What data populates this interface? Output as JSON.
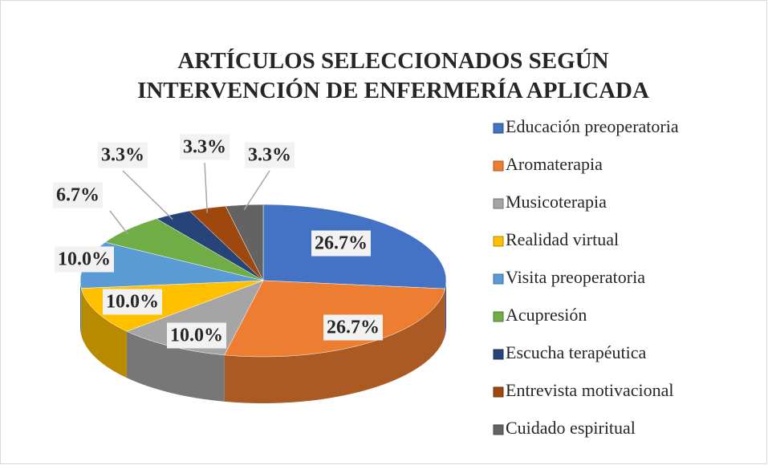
{
  "chart_data": {
    "type": "pie3d",
    "title": "ARTÍCULOS SELECCIONADOS SEGÚN INTERVENCIÓN DE ENFERMERÍA APLICADA",
    "categories": [
      "Educación preoperatoria",
      "Aromaterapia",
      "Musicoterapia",
      "Realidad virtual",
      "Visita preoperatoria",
      "Acupresión",
      "Escucha terapéutica",
      "Entrevista motivacional",
      "Cuidado espiritual"
    ],
    "values": [
      26.7,
      26.7,
      10.0,
      10.0,
      10.0,
      6.7,
      3.3,
      3.3,
      3.3
    ],
    "value_labels": [
      "26.7%",
      "26.7%",
      "10.0%",
      "10.0%",
      "10.0%",
      "6.7%",
      "3.3%",
      "3.3%",
      "3.3%"
    ],
    "colors": [
      "#4472c4",
      "#ed7d31",
      "#a5a5a5",
      "#ffc000",
      "#5b9bd5",
      "#70ad47",
      "#264478",
      "#9e480e",
      "#636363"
    ],
    "legend": "right"
  }
}
